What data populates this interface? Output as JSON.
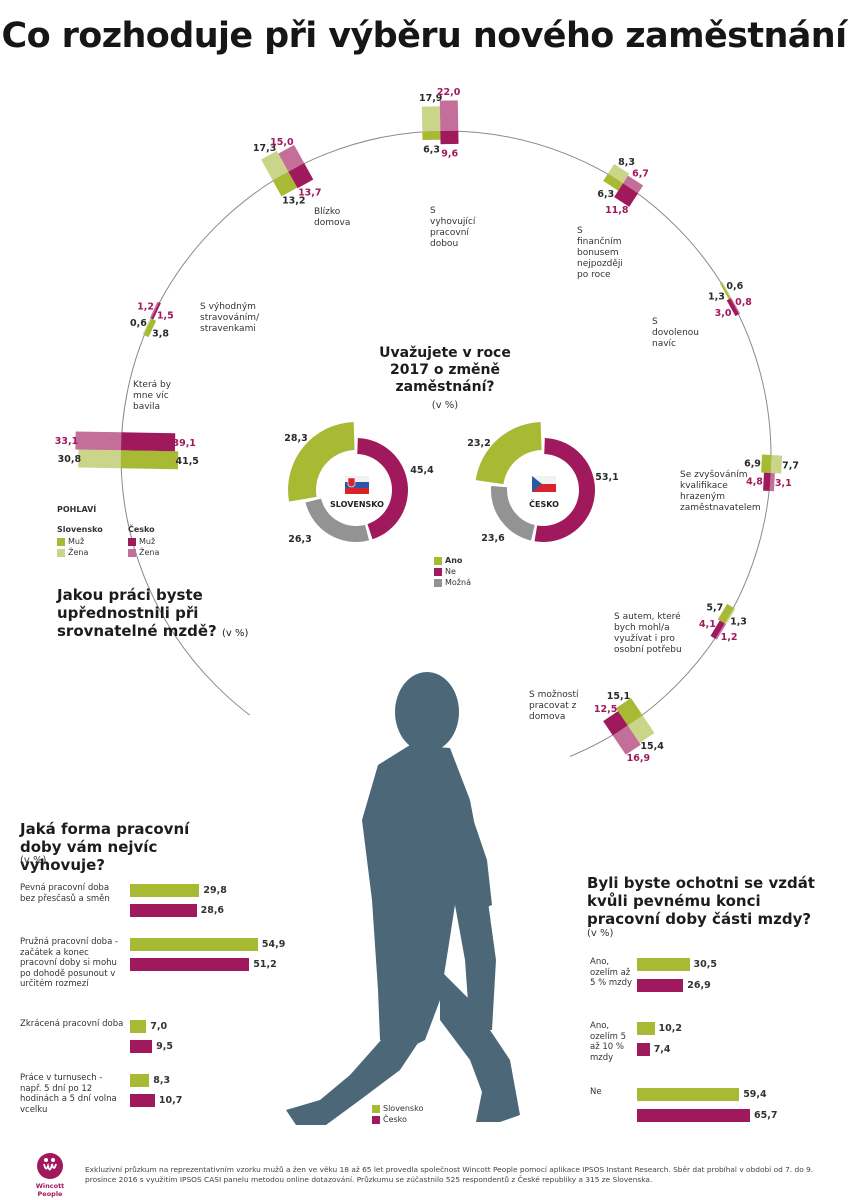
{
  "title": "Co rozhoduje při výběru nového zaměstnání",
  "colors": {
    "sk_muz": "#a8b934",
    "sk_zena": "#cbd58a",
    "cz_muz": "#a1195d",
    "cz_zena": "#c46f9a",
    "ne": "#a1195d",
    "ano": "#a8b934",
    "mozna": "#939393",
    "silhouette": "#4c6878"
  },
  "radial": {
    "question": "Jakou práci byste upřednostnili při srovnatelné mzdě?",
    "unit": "(v %)",
    "legend": {
      "title": "POHLAVÍ",
      "sk_label": "Slovensko",
      "cz_label": "Česko",
      "muz": "Muž",
      "zena": "Žena"
    }
  },
  "chart_data": [
    {
      "type": "bar",
      "title": "Jakou práci byste upřednostnili při srovnatelné mzdě?",
      "unit": "(v %)",
      "categories": [
        "Která by mne víc bavila",
        "S výhodným stravováním/ stravenkami",
        "Blízko domova",
        "S vyhovující pracovní dobou",
        "S finančním bonusem nejpozději po roce",
        "S dovolenou navíc",
        "Se zvyšováním kvalifikace hrazeným zaměstnavatelem",
        "S autem, které bych mohl/a využívat i pro osobní potřebu",
        "S možností pracovat z domova"
      ],
      "series": [
        {
          "name": "Slovensko Muž",
          "values": [
            "41,5",
            "3,8",
            "13,2",
            "6,3",
            "6,3",
            "1,3",
            "6,9",
            "5,7",
            "15,1"
          ]
        },
        {
          "name": "Slovensko Žena",
          "values": [
            "30,8",
            "0,6",
            "17,3",
            "17,9",
            "8,3",
            "0,6",
            "7,7",
            "1,3",
            "15,4"
          ]
        },
        {
          "name": "Česko Muž",
          "values": [
            "39,1",
            "1,5",
            "13,7",
            "9,6",
            "11,8",
            "3,0",
            "4,8",
            "4,1",
            "12,5"
          ]
        },
        {
          "name": "Česko Žena",
          "values": [
            "33,1",
            "1,2",
            "15,0",
            "22,0",
            "6,7",
            "0,8",
            "3,1",
            "1,2",
            "16,9"
          ]
        }
      ]
    },
    {
      "type": "pie",
      "title": "Uvažujete v roce 2017 o změně zaměstnání?",
      "unit": "(v %)",
      "charts": [
        {
          "name": "SLOVENSKO",
          "categories": [
            "Ano",
            "Ne",
            "Možná"
          ],
          "values": [
            "28,3",
            "45,4",
            "26,3"
          ]
        },
        {
          "name": "ČESKO",
          "categories": [
            "Ano",
            "Ne",
            "Možná"
          ],
          "values": [
            "23,2",
            "53,1",
            "23,6"
          ]
        }
      ],
      "legend": [
        "Ano",
        "Ne",
        "Možná"
      ]
    },
    {
      "type": "bar",
      "title": "Jaká forma pracovní doby vám nejvíc vyhovuje?",
      "unit": "(v %)",
      "categories": [
        "Pevná pracovní doba bez přesčasů a směn",
        "Pružná pracovní doba - začátek a konec pracovní doby si mohu po dohodě posunout v určitém rozmezí",
        "Zkrácená pracovní doba",
        "Práce v turnusech - např. 5 dní po 12 hodinách a 5 dní volna vcelku"
      ],
      "series": [
        {
          "name": "Slovensko",
          "values": [
            "29,8",
            "54,9",
            "7,0",
            "8,3"
          ]
        },
        {
          "name": "Česko",
          "values": [
            "28,6",
            "51,2",
            "9,5",
            "10,7"
          ]
        }
      ],
      "legend": [
        "Slovensko",
        "Česko"
      ]
    },
    {
      "type": "bar",
      "title": "Byli byste ochotni se vzdát kvůli pevnému konci pracovní doby části mzdy?",
      "unit": "(v %)",
      "categories": [
        "Ano, ozelím až 5 % mzdy",
        "Ano, ozelím 5 až 10 % mzdy",
        "Ne"
      ],
      "series": [
        {
          "name": "Slovensko",
          "values": [
            "30,5",
            "10,2",
            "59,4"
          ]
        },
        {
          "name": "Česko",
          "values": [
            "26,9",
            "7,4",
            "65,7"
          ]
        }
      ]
    }
  ],
  "footer": {
    "logo_text": "Wincott People",
    "text": "Exkluzivní průzkum na reprezentativním vzorku mužů a žen ve věku 18 až 65 let provedla společnost Wincott People pomocí aplikace IPSOS Instant Research. Sběr dat probíhal v období od 7. do 9. prosince 2016 s využitím IPSOS CASI panelu metodou online dotazování. Průzkumu se zúčastnilo 525 respondentů z České republiky a 315 ze Slovenska."
  }
}
